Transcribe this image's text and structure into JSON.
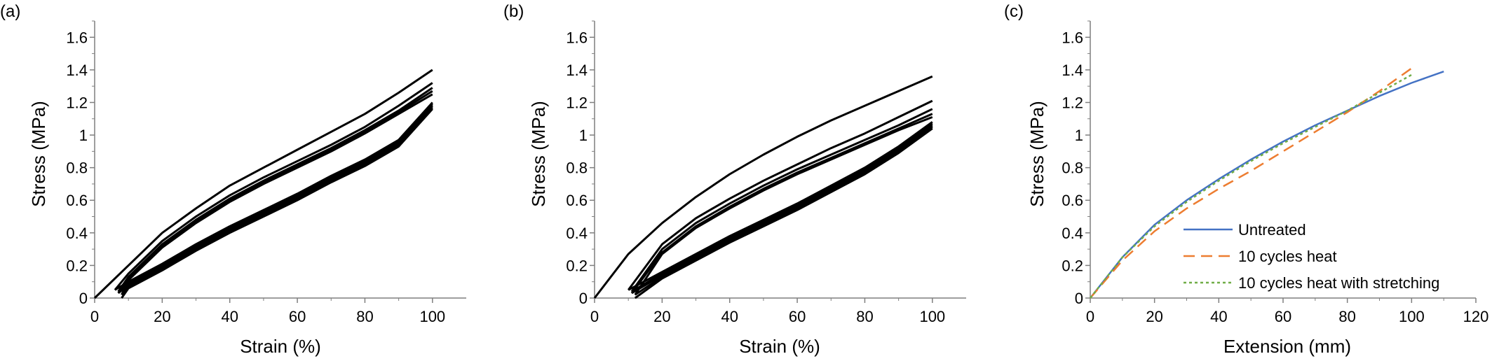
{
  "chart_data": [
    {
      "type": "line",
      "panel_label": "(a)",
      "xlabel": "Strain (%)",
      "ylabel": "Stress (MPa)",
      "xlim": [
        0,
        110
      ],
      "ylim": [
        0,
        1.7
      ],
      "xticks": [
        "0",
        "20",
        "40",
        "60",
        "80",
        "100"
      ],
      "yticks": [
        "0",
        "0.2",
        "0.4",
        "0.6",
        "0.8",
        "1",
        "1.2",
        "1.4",
        "1.6"
      ],
      "grid": false,
      "series_color": "#000000",
      "series": [
        {
          "x": [
            0,
            10,
            20,
            30,
            40,
            50,
            60,
            70,
            80,
            90,
            100
          ],
          "y": [
            0,
            0.2,
            0.4,
            0.55,
            0.69,
            0.8,
            0.91,
            1.02,
            1.13,
            1.26,
            1.4
          ]
        },
        {
          "x": [
            100,
            90,
            80,
            70,
            60,
            50,
            40,
            30,
            20,
            10,
            6
          ],
          "y": [
            1.2,
            0.97,
            0.85,
            0.75,
            0.64,
            0.54,
            0.44,
            0.33,
            0.21,
            0.1,
            0.05
          ]
        },
        {
          "x": [
            6,
            10,
            20,
            30,
            40,
            50,
            60,
            70,
            80,
            90,
            100
          ],
          "y": [
            0.05,
            0.15,
            0.35,
            0.5,
            0.63,
            0.74,
            0.84,
            0.94,
            1.05,
            1.18,
            1.32
          ]
        },
        {
          "x": [
            100,
            90,
            80,
            70,
            60,
            50,
            40,
            30,
            20,
            10,
            7
          ],
          "y": [
            1.19,
            0.96,
            0.84,
            0.74,
            0.63,
            0.53,
            0.43,
            0.32,
            0.2,
            0.09,
            0.04
          ]
        },
        {
          "x": [
            7,
            10,
            20,
            30,
            40,
            50,
            60,
            70,
            80,
            90,
            100
          ],
          "y": [
            0.04,
            0.13,
            0.33,
            0.48,
            0.61,
            0.72,
            0.82,
            0.92,
            1.03,
            1.15,
            1.29
          ]
        },
        {
          "x": [
            100,
            90,
            80,
            70,
            60,
            50,
            40,
            30,
            20,
            10,
            7
          ],
          "y": [
            1.18,
            0.95,
            0.83,
            0.73,
            0.62,
            0.52,
            0.42,
            0.31,
            0.19,
            0.08,
            0.03
          ]
        },
        {
          "x": [
            7,
            10,
            20,
            30,
            40,
            50,
            60,
            70,
            80,
            90,
            100
          ],
          "y": [
            0.03,
            0.12,
            0.32,
            0.47,
            0.6,
            0.71,
            0.81,
            0.91,
            1.02,
            1.14,
            1.27
          ]
        },
        {
          "x": [
            100,
            90,
            80,
            70,
            60,
            50,
            40,
            30,
            20,
            10,
            8
          ],
          "y": [
            1.17,
            0.94,
            0.82,
            0.72,
            0.61,
            0.51,
            0.41,
            0.3,
            0.18,
            0.07,
            0.02
          ]
        },
        {
          "x": [
            8,
            10,
            20,
            30,
            40,
            50,
            60,
            70,
            80,
            90,
            100
          ],
          "y": [
            0.02,
            0.11,
            0.31,
            0.46,
            0.59,
            0.7,
            0.8,
            0.9,
            1.01,
            1.13,
            1.25
          ]
        },
        {
          "x": [
            100,
            90,
            80,
            70,
            60,
            50,
            40,
            30,
            20,
            10,
            8
          ],
          "y": [
            1.16,
            0.93,
            0.81,
            0.71,
            0.6,
            0.5,
            0.4,
            0.29,
            0.17,
            0.06,
            0.0
          ]
        }
      ]
    },
    {
      "type": "line",
      "panel_label": "(b)",
      "xlabel": "Strain (%)",
      "ylabel": "Stress (MPa)",
      "xlim": [
        0,
        110
      ],
      "ylim": [
        0,
        1.7
      ],
      "xticks": [
        "0",
        "20",
        "40",
        "60",
        "80",
        "100"
      ],
      "yticks": [
        "0",
        "0.2",
        "0.4",
        "0.6",
        "0.8",
        "1",
        "1.2",
        "1.4",
        "1.6"
      ],
      "grid": false,
      "series_color": "#000000",
      "series": [
        {
          "x": [
            0,
            10,
            20,
            30,
            40,
            50,
            60,
            70,
            80,
            90,
            100
          ],
          "y": [
            0,
            0.27,
            0.46,
            0.62,
            0.76,
            0.88,
            0.99,
            1.09,
            1.18,
            1.27,
            1.36
          ]
        },
        {
          "x": [
            100,
            90,
            80,
            70,
            60,
            50,
            40,
            30,
            20,
            10
          ],
          "y": [
            1.08,
            0.93,
            0.8,
            0.69,
            0.58,
            0.48,
            0.38,
            0.27,
            0.16,
            0.05
          ]
        },
        {
          "x": [
            10,
            20,
            30,
            40,
            50,
            60,
            70,
            80,
            90,
            100
          ],
          "y": [
            0.05,
            0.33,
            0.49,
            0.61,
            0.72,
            0.82,
            0.92,
            1.01,
            1.11,
            1.21
          ]
        },
        {
          "x": [
            100,
            90,
            80,
            70,
            60,
            50,
            40,
            30,
            20,
            11
          ],
          "y": [
            1.07,
            0.92,
            0.79,
            0.68,
            0.57,
            0.47,
            0.37,
            0.26,
            0.15,
            0.04
          ]
        },
        {
          "x": [
            11,
            20,
            30,
            40,
            50,
            60,
            70,
            80,
            90,
            100
          ],
          "y": [
            0.04,
            0.3,
            0.46,
            0.58,
            0.69,
            0.79,
            0.88,
            0.97,
            1.06,
            1.16
          ]
        },
        {
          "x": [
            100,
            90,
            80,
            70,
            60,
            50,
            40,
            30,
            20,
            11
          ],
          "y": [
            1.06,
            0.91,
            0.78,
            0.67,
            0.56,
            0.46,
            0.36,
            0.25,
            0.14,
            0.03
          ]
        },
        {
          "x": [
            11,
            20,
            30,
            40,
            50,
            60,
            70,
            80,
            90,
            100
          ],
          "y": [
            0.03,
            0.28,
            0.44,
            0.56,
            0.67,
            0.77,
            0.86,
            0.95,
            1.04,
            1.13
          ]
        },
        {
          "x": [
            100,
            90,
            80,
            70,
            60,
            50,
            40,
            30,
            20,
            12
          ],
          "y": [
            1.05,
            0.9,
            0.77,
            0.66,
            0.55,
            0.45,
            0.35,
            0.24,
            0.13,
            0.02
          ]
        },
        {
          "x": [
            12,
            20,
            30,
            40,
            50,
            60,
            70,
            80,
            90,
            100
          ],
          "y": [
            0.02,
            0.27,
            0.43,
            0.55,
            0.66,
            0.76,
            0.85,
            0.94,
            1.03,
            1.11
          ]
        },
        {
          "x": [
            100,
            90,
            80,
            70,
            60,
            50,
            40,
            30,
            20,
            12
          ],
          "y": [
            1.04,
            0.89,
            0.76,
            0.65,
            0.54,
            0.44,
            0.34,
            0.23,
            0.12,
            0.0
          ]
        }
      ]
    },
    {
      "type": "line",
      "panel_label": "(c)",
      "xlabel": "Extension (mm)",
      "ylabel": "Stress (MPa)",
      "xlim": [
        0,
        120
      ],
      "ylim": [
        0,
        1.7
      ],
      "xticks": [
        "0",
        "20",
        "40",
        "60",
        "80",
        "100",
        "120"
      ],
      "yticks": [
        "0",
        "0.2",
        "0.4",
        "0.6",
        "0.8",
        "1",
        "1.2",
        "1.4",
        "1.6"
      ],
      "grid": false,
      "legend_position": "lower-right",
      "series": [
        {
          "name": "Untreated",
          "color": "#4472C4",
          "dash": "solid",
          "x": [
            0,
            10,
            20,
            30,
            40,
            50,
            60,
            70,
            80,
            90,
            100,
            110
          ],
          "y": [
            0,
            0.25,
            0.45,
            0.6,
            0.73,
            0.85,
            0.96,
            1.06,
            1.15,
            1.24,
            1.32,
            1.39
          ]
        },
        {
          "name": "10 cycles heat",
          "color": "#ED7D31",
          "dash": "dashed",
          "x": [
            0,
            10,
            20,
            30,
            40,
            50,
            60,
            70,
            80,
            90,
            100
          ],
          "y": [
            0,
            0.23,
            0.41,
            0.55,
            0.67,
            0.78,
            0.9,
            1.02,
            1.14,
            1.27,
            1.41
          ]
        },
        {
          "name": "10 cycles heat with stretching",
          "color": "#70AD47",
          "dash": "dotted",
          "x": [
            0,
            10,
            20,
            30,
            40,
            50,
            60,
            70,
            80,
            90,
            100
          ],
          "y": [
            0,
            0.25,
            0.44,
            0.59,
            0.72,
            0.84,
            0.95,
            1.05,
            1.15,
            1.26,
            1.37
          ]
        }
      ]
    }
  ]
}
